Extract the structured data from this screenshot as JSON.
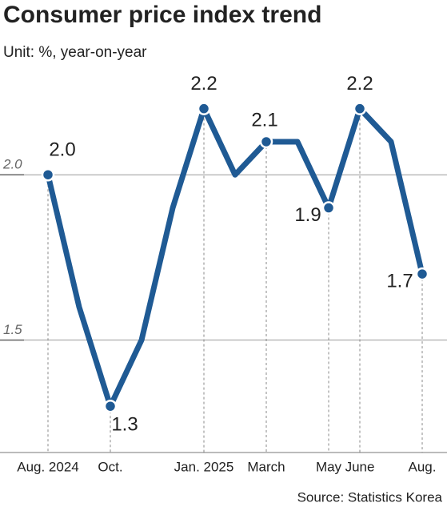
{
  "chart_data": {
    "type": "line",
    "title": "Consumer price index trend",
    "subtitle": "Unit: %, year-on-year",
    "source": "Source: Statistics Korea",
    "categories": [
      "Aug. 2024",
      null,
      "Oct.",
      null,
      null,
      "Jan. 2025",
      null,
      "March",
      null,
      "May",
      "June",
      null,
      "Aug."
    ],
    "series": [
      {
        "name": "CPI",
        "color": "#1f5a94",
        "values": [
          2.0,
          1.6,
          1.3,
          1.5,
          1.9,
          2.2,
          2.0,
          2.1,
          2.1,
          1.9,
          2.2,
          2.1,
          1.7
        ],
        "value_labels": [
          "2.0",
          null,
          "1.3",
          null,
          null,
          "2.2",
          null,
          "2.1",
          null,
          "1.9",
          "2.2",
          null,
          "1.7"
        ]
      }
    ],
    "ylim": [
      1.16,
      2.3
    ],
    "yticks": [
      {
        "value": 2.0,
        "label": "2.0"
      },
      {
        "value": 1.5,
        "label": "1.5"
      }
    ],
    "grid": true
  }
}
